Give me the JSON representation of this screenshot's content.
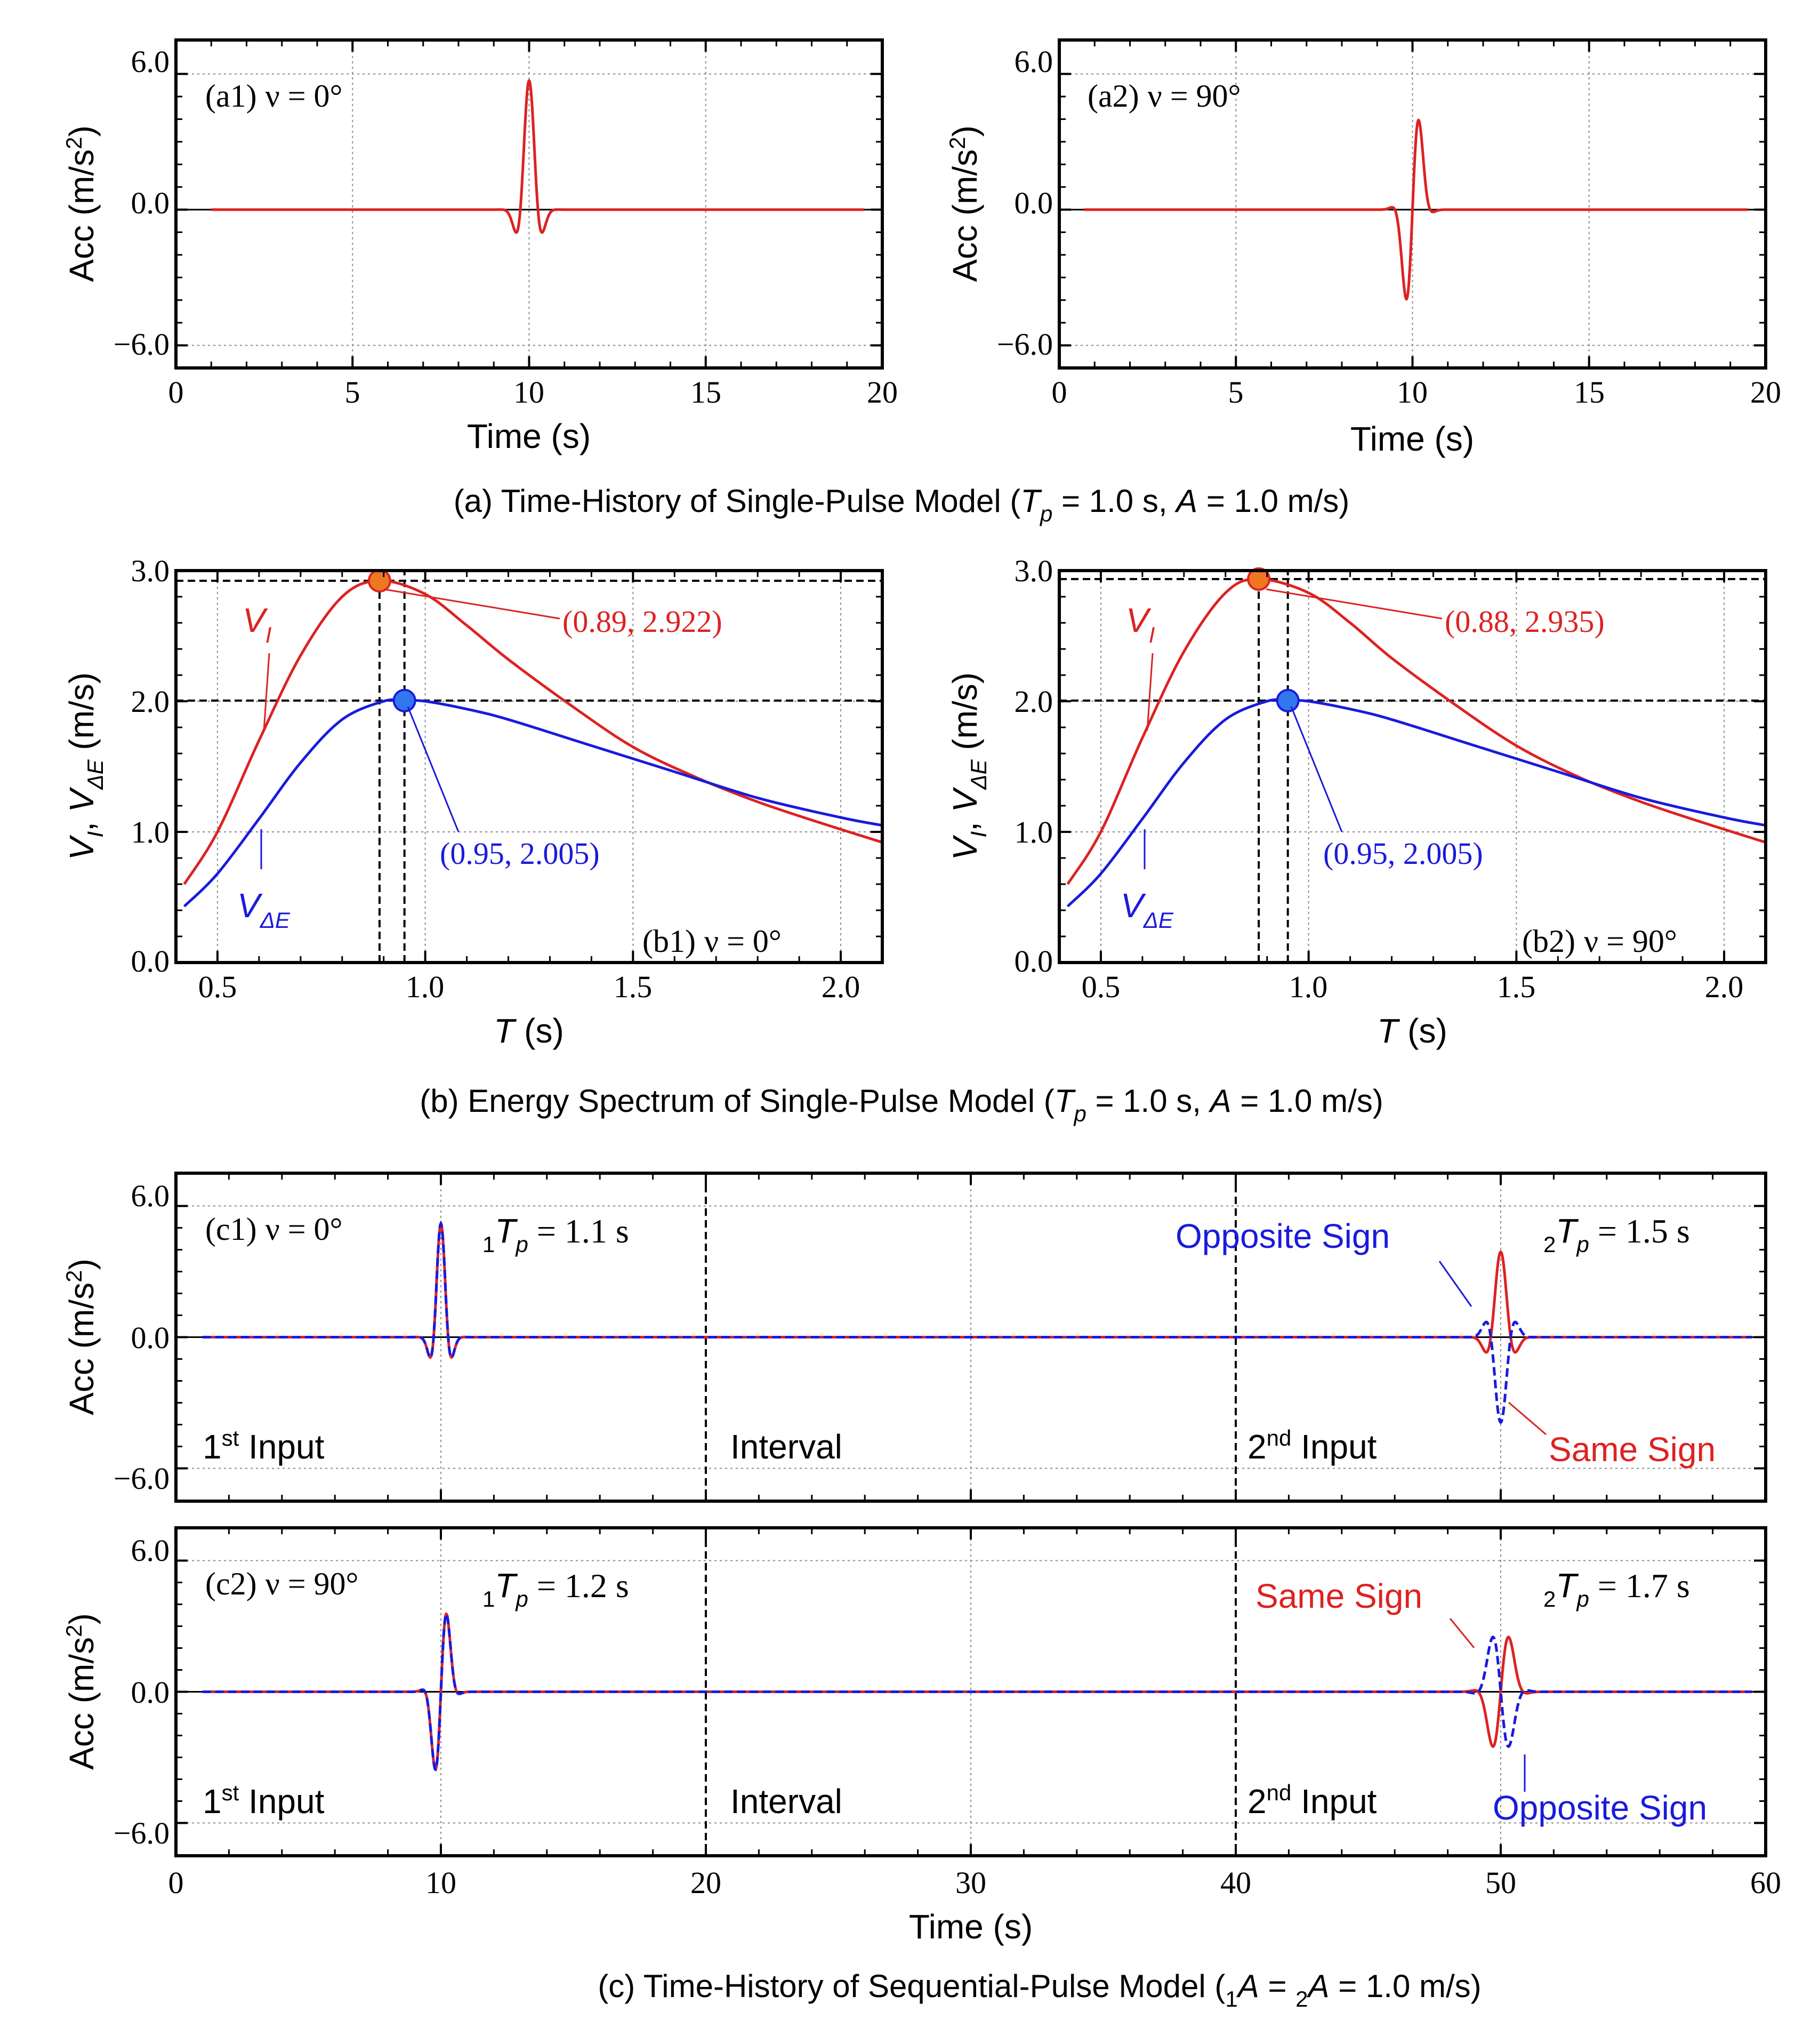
{
  "colors": {
    "red": "#dd2222",
    "blue": "#1a1add",
    "orange": "#ee7722",
    "point_blue": "#3377ee",
    "axis": "#000000",
    "grid": "#888888"
  },
  "captions": {
    "a": {
      "pre": "(a) Time-History of Single-Pulse Model (",
      "var": "T",
      "sub": "p",
      "post": " = 1.0 s, ",
      "var2": "A",
      "post2": " = 1.0 m/s)"
    },
    "b": {
      "pre": "(b) Energy Spectrum of Single-Pulse Model (",
      "var": "T",
      "sub": "p",
      "post": " = 1.0 s, ",
      "var2": "A",
      "post2": " = 1.0 m/s)"
    },
    "c": {
      "pre": "(c) Time-History of Sequential-Pulse Model (",
      "sub1": "1",
      "var1": "A",
      "mid": " = ",
      "sub2": "2",
      "var2": "A",
      "post": " = 1.0 m/s)"
    }
  },
  "chart_data": [
    {
      "id": "a1",
      "type": "line",
      "panel_label": "(a1)",
      "nu_label": "ν = 0°",
      "xlabel": "Time (s)",
      "ylabel_main": "Acc (m/s",
      "ylabel_sup": "2",
      "ylabel_end": ")",
      "xlim": [
        0,
        20
      ],
      "ylim": [
        -7,
        7.5
      ],
      "xticks": [
        "0",
        "5",
        "10",
        "15",
        "20"
      ],
      "yticks": [
        "6.0",
        "0.0",
        "−6.0"
      ],
      "series": [
        {
          "name": "Acc",
          "color": "red",
          "t0": 1.0,
          "t1": 19.5,
          "tc": 10,
          "Tp": 1.0,
          "amp": 5.7,
          "phase_deg": 0
        }
      ]
    },
    {
      "id": "a2",
      "type": "line",
      "panel_label": "(a2)",
      "nu_label": "ν = 90°",
      "xlabel": "Time (s)",
      "ylabel_main": "Acc (m/s",
      "ylabel_sup": "2",
      "ylabel_end": ")",
      "xlim": [
        0,
        20
      ],
      "ylim": [
        -7,
        7.5
      ],
      "xticks": [
        "0",
        "5",
        "10",
        "15",
        "20"
      ],
      "yticks": [
        "6.0",
        "0.0",
        "−6.0"
      ],
      "series": [
        {
          "name": "Acc",
          "color": "red",
          "t0": 0.7,
          "t1": 19.5,
          "tc": 10,
          "Tp": 1.0,
          "amp": 6.0,
          "phase_deg": 90
        }
      ]
    },
    {
      "id": "b1",
      "type": "line",
      "panel_label": "(b1)",
      "nu_label": "ν = 0°",
      "xlabel_var": "T",
      "xlabel_unit": " (s)",
      "ylabel_v1": "V",
      "ylabel_s1": "I",
      "ylabel_v2": "V",
      "ylabel_s2": "ΔE",
      "ylabel_unit": " (m/s)",
      "xlim": [
        0.4,
        2.1
      ],
      "ylim": [
        0,
        3.0
      ],
      "xticks": [
        "0.5",
        "1.0",
        "1.5",
        "2.0"
      ],
      "yticks": [
        "3.0",
        "2.0",
        "1.0",
        "0.0"
      ],
      "series": [
        {
          "name": "V_I",
          "color": "red",
          "T": [
            0.42,
            0.5,
            0.6,
            0.7,
            0.8,
            0.89,
            1.0,
            1.1,
            1.2,
            1.35,
            1.5,
            1.65,
            1.8,
            1.95,
            2.1
          ],
          "V": [
            0.6,
            1.0,
            1.7,
            2.35,
            2.8,
            2.922,
            2.82,
            2.58,
            2.32,
            1.97,
            1.65,
            1.42,
            1.23,
            1.07,
            0.92
          ]
        },
        {
          "name": "V_dE",
          "color": "blue",
          "T": [
            0.42,
            0.5,
            0.6,
            0.7,
            0.8,
            0.9,
            0.95,
            1.0,
            1.1,
            1.2,
            1.4,
            1.6,
            1.8,
            2.0,
            2.1
          ],
          "V": [
            0.43,
            0.68,
            1.1,
            1.53,
            1.86,
            2.0,
            2.005,
            2.0,
            1.94,
            1.86,
            1.66,
            1.46,
            1.26,
            1.11,
            1.05
          ]
        }
      ],
      "points": [
        {
          "T": 0.89,
          "V": 2.922,
          "color": "orange",
          "label": "(0.89, 2.922)"
        },
        {
          "T": 0.95,
          "V": 2.005,
          "color": "point_blue",
          "label": "(0.95, 2.005)"
        }
      ],
      "vi_label": {
        "main": "V",
        "sub": "I"
      },
      "vde_label": {
        "main": "V",
        "sub": "ΔE"
      }
    },
    {
      "id": "b2",
      "type": "line",
      "panel_label": "(b2)",
      "nu_label": "ν = 90°",
      "xlabel_var": "T",
      "xlabel_unit": " (s)",
      "ylabel_v1": "V",
      "ylabel_s1": "I",
      "ylabel_v2": "V",
      "ylabel_s2": "ΔE",
      "ylabel_unit": " (m/s)",
      "xlim": [
        0.4,
        2.1
      ],
      "ylim": [
        0,
        3.0
      ],
      "xticks": [
        "0.5",
        "1.0",
        "1.5",
        "2.0"
      ],
      "yticks": [
        "3.0",
        "2.0",
        "1.0",
        "0.0"
      ],
      "series": [
        {
          "name": "V_I",
          "color": "red",
          "T": [
            0.42,
            0.5,
            0.6,
            0.7,
            0.8,
            0.88,
            1.0,
            1.1,
            1.2,
            1.35,
            1.5,
            1.65,
            1.8,
            1.95,
            2.1
          ],
          "V": [
            0.6,
            1.0,
            1.72,
            2.38,
            2.83,
            2.935,
            2.83,
            2.6,
            2.33,
            1.98,
            1.66,
            1.42,
            1.23,
            1.07,
            0.92
          ]
        },
        {
          "name": "V_dE",
          "color": "blue",
          "T": [
            0.42,
            0.5,
            0.6,
            0.7,
            0.8,
            0.9,
            0.95,
            1.0,
            1.1,
            1.2,
            1.4,
            1.6,
            1.8,
            2.0,
            2.1
          ],
          "V": [
            0.43,
            0.68,
            1.1,
            1.53,
            1.86,
            2.0,
            2.005,
            2.0,
            1.94,
            1.86,
            1.66,
            1.46,
            1.26,
            1.11,
            1.05
          ]
        }
      ],
      "points": [
        {
          "T": 0.88,
          "V": 2.935,
          "color": "orange",
          "label": "(0.88, 2.935)"
        },
        {
          "T": 0.95,
          "V": 2.005,
          "color": "point_blue",
          "label": "(0.95, 2.005)"
        }
      ],
      "vi_label": {
        "main": "V",
        "sub": "I"
      },
      "vde_label": {
        "main": "V",
        "sub": "ΔE"
      }
    },
    {
      "id": "c1",
      "type": "line",
      "panel_label": "(c1)",
      "nu_label": "ν = 0°",
      "ylabel_main": "Acc (m/s",
      "ylabel_sup": "2",
      "ylabel_end": ")",
      "xlim": [
        0,
        60
      ],
      "ylim": [
        -7.5,
        7.5
      ],
      "yticks": [
        "6.0",
        "0.0",
        "−6.0"
      ],
      "tp1": {
        "sub": "1",
        "var": "T",
        "sub2": "p",
        "val": " = 1.1 s"
      },
      "tp2": {
        "sub": "2",
        "var": "T",
        "sub2": "p",
        "val": " = 1.5 s"
      },
      "input1": {
        "main": "1",
        "sup": "st",
        "rest": " Input"
      },
      "interval": "Interval",
      "input2": {
        "main": "2",
        "sup": "nd",
        "rest": " Input"
      },
      "opposite_label": "Opposite Sign",
      "same_label": "Same Sign",
      "pulses": [
        {
          "tc": 10,
          "Tp": 1.1,
          "amp": 5.2,
          "phase_deg": 0
        },
        {
          "tc": 50,
          "Tp": 1.5,
          "amp": 3.9,
          "phase_deg": 0
        }
      ]
    },
    {
      "id": "c2",
      "type": "line",
      "panel_label": "(c2)",
      "nu_label": "ν = 90°",
      "ylabel_main": "Acc (m/s",
      "ylabel_sup": "2",
      "ylabel_end": ")",
      "xlabel": "Time (s)",
      "xlim": [
        0,
        60
      ],
      "ylim": [
        -7.5,
        7.5
      ],
      "xticks": [
        "0",
        "10",
        "20",
        "30",
        "40",
        "50",
        "60"
      ],
      "yticks": [
        "6.0",
        "0.0",
        "−6.0"
      ],
      "tp1": {
        "sub": "1",
        "var": "T",
        "sub2": "p",
        "val": " = 1.2 s"
      },
      "tp2": {
        "sub": "2",
        "var": "T",
        "sub2": "p",
        "val": " = 1.7 s"
      },
      "input1": {
        "main": "1",
        "sup": "st",
        "rest": " Input"
      },
      "interval": "Interval",
      "input2": {
        "main": "2",
        "sup": "nd",
        "rest": " Input"
      },
      "opposite_label": "Opposite Sign",
      "same_label": "Same Sign",
      "pulses": [
        {
          "tc": 10,
          "Tp": 1.2,
          "amp": 5.4,
          "phase_deg": 90
        },
        {
          "tc": 50,
          "Tp": 1.7,
          "amp": 3.8,
          "phase_deg": 90
        }
      ]
    }
  ]
}
